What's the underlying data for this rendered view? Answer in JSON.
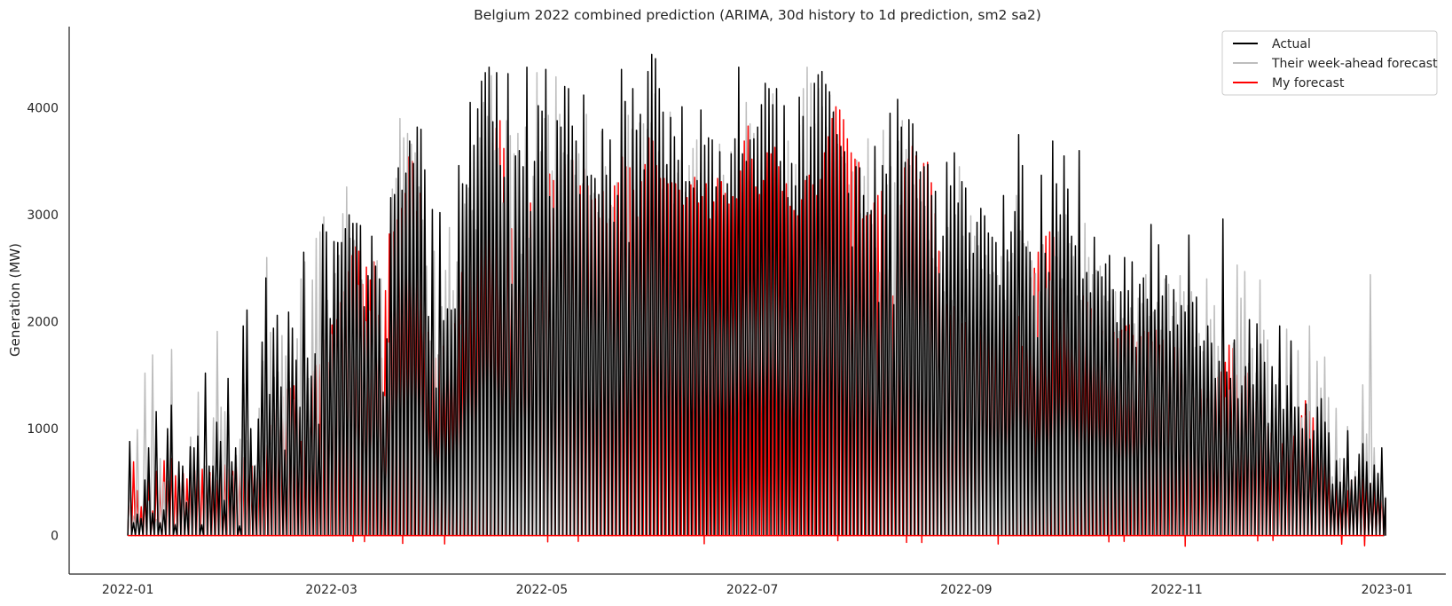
{
  "chart_data": {
    "type": "line",
    "title": "Belgium 2022 combined prediction (ARIMA, 30d history to 1d prediction, sm2 sa2)",
    "xlabel": "",
    "ylabel": "Generation (MW)",
    "xlim": [
      "2021-12-15",
      "2023-01-18"
    ],
    "ylim": [
      -360,
      4760
    ],
    "x_ticks": [
      "2022-01",
      "2022-03",
      "2022-05",
      "2022-07",
      "2022-09",
      "2022-11",
      "2023-01"
    ],
    "y_ticks": [
      0,
      1000,
      2000,
      3000,
      4000
    ],
    "grid": false,
    "legend_position": "top-right",
    "legend": [
      "Actual",
      "Their week-ahead forecast",
      "My forecast"
    ],
    "x_start": "2022-01-01",
    "x_end": "2022-12-31",
    "sampling": "daily peak (MW)",
    "series": [
      {
        "name": "Actual",
        "color": "#000000",
        "values": [
          880,
          120,
          200,
          160,
          520,
          820,
          210,
          1160,
          120,
          240,
          1000,
          1220,
          100,
          690,
          650,
          310,
          830,
          820,
          930,
          100,
          1520,
          650,
          650,
          1060,
          880,
          330,
          1470,
          690,
          820,
          90,
          1960,
          2110,
          1000,
          650,
          1090,
          1810,
          2410,
          1320,
          1940,
          2060,
          1390,
          800,
          2090,
          1940,
          1640,
          1200,
          2650,
          1660,
          1490,
          1700,
          1040,
          2910,
          2840,
          2030,
          2750,
          2740,
          2740,
          2870,
          3000,
          2920,
          2920,
          2900,
          2140,
          2430,
          2800,
          2520,
          2400,
          1340,
          1840,
          3160,
          3190,
          3440,
          3230,
          3390,
          3690,
          3480,
          3820,
          3800,
          3420,
          2050,
          3050,
          1380,
          3020,
          2010,
          2120,
          2110,
          2120,
          3460,
          3290,
          3280,
          4050,
          3650,
          3990,
          4250,
          4330,
          4380,
          3870,
          4330,
          3460,
          3350,
          4320,
          2350,
          3550,
          3600,
          3450,
          4380,
          3030,
          3500,
          4020,
          3970,
          4360,
          3170,
          3060,
          3880,
          3820,
          4200,
          4180,
          3830,
          3690,
          3190,
          4120,
          3360,
          3370,
          3340,
          3190,
          3800,
          3370,
          3700,
          2930,
          3180,
          4360,
          4060,
          2740,
          4180,
          3790,
          3940,
          3420,
          4340,
          4500,
          4460,
          4180,
          3960,
          3470,
          3910,
          3730,
          3510,
          4010,
          3310,
          3310,
          3250,
          3320,
          3980,
          3650,
          3720,
          3700,
          3260,
          3590,
          3180,
          3290,
          3570,
          3710,
          4380,
          3570,
          3500,
          3700,
          3710,
          3820,
          4030,
          4230,
          4180,
          4030,
          4180,
          3500,
          4020,
          3160,
          3480,
          3270,
          4100,
          3920,
          3360,
          3820,
          4230,
          4310,
          4340,
          4220,
          4150,
          3960,
          3750,
          3640,
          3590,
          3200,
          2700,
          3450,
          3440,
          3180,
          3020,
          3040,
          3640,
          2180,
          3460,
          3380,
          3950,
          2160,
          4080,
          3820,
          3490,
          3890,
          3850,
          3590,
          3400,
          3450,
          3470,
          3180,
          3220,
          2450,
          2800,
          3490,
          3270,
          3580,
          3110,
          3310,
          3250,
          2830,
          2640,
          2930,
          3060,
          2990,
          2830,
          2790,
          2740,
          2340,
          3180,
          2670,
          2840,
          3030,
          3750,
          3460,
          2700,
          2650,
          2240,
          1850,
          3370,
          2640,
          2460,
          3690,
          3290,
          3000,
          3550,
          3240,
          2800,
          2710,
          3600,
          2400,
          2460,
          2270,
          2790,
          2470,
          2420,
          2540,
          2620,
          2300,
          1990,
          2280,
          2600,
          2290,
          2560,
          1760,
          2350,
          2410,
          2210,
          2910,
          2110,
          2720,
          2240,
          2430,
          1910,
          2300,
          1970,
          2150,
          2090,
          2810,
          2180,
          2230,
          1770,
          1820,
          1960,
          1800,
          1470,
          1630,
          2960,
          1530,
          1470,
          1830,
          1280,
          1400,
          1580,
          2020,
          1410,
          1980,
          1790,
          1620,
          1050,
          1580,
          1410,
          1960,
          1180,
          1400,
          1820,
          1200,
          1200,
          1000,
          1230,
          900,
          980,
          1200,
          1280,
          1060,
          960,
          480,
          700,
          500,
          720,
          980,
          520,
          550,
          760,
          860,
          690,
          490,
          660,
          580,
          820,
          350
        ]
      },
      {
        "name": "Their week-ahead forecast",
        "color": "#bdbdbd",
        "values": [
          560,
          180,
          990,
          160,
          1520,
          320,
          1690,
          150,
          720,
          500,
          930,
          1740,
          110,
          450,
          550,
          320,
          920,
          540,
          1340,
          100,
          650,
          560,
          1100,
          1910,
          1200,
          1160,
          1130,
          560,
          750,
          900,
          1420,
          890,
          620,
          660,
          1190,
          1630,
          2600,
          1900,
          1480,
          1530,
          1870,
          1680,
          1440,
          1270,
          1840,
          2400,
          2560,
          1470,
          2390,
          2780,
          2840,
          2980,
          2200,
          1880,
          2450,
          2620,
          3010,
          3260,
          2780,
          2760,
          2340,
          2390,
          2000,
          2100,
          2560,
          2570,
          2400,
          1300,
          1800,
          3240,
          3340,
          3900,
          3720,
          3760,
          3660,
          3580,
          3260,
          2950,
          2520,
          1820,
          2660,
          1690,
          2140,
          2480,
          2880,
          2290,
          2560,
          1970,
          3100,
          3250,
          3040,
          2860,
          3720,
          4050,
          3920,
          4300,
          3600,
          3620,
          3110,
          3880,
          3740,
          3570,
          3760,
          2630,
          3820,
          2780,
          3360,
          4330,
          3590,
          3900,
          3930,
          3410,
          4290,
          3940,
          3580,
          3560,
          3510,
          3370,
          3570,
          3290,
          3940,
          3180,
          3200,
          3020,
          3780,
          3450,
          2960,
          3070,
          3300,
          2840,
          4060,
          3930,
          3800,
          3790,
          3860,
          3850,
          3800,
          3860,
          4130,
          3590,
          3240,
          3460,
          3960,
          3100,
          3390,
          3510,
          3210,
          3460,
          3620,
          3700,
          3390,
          3250,
          3250,
          3380,
          3040,
          3660,
          3370,
          3290,
          3590,
          3170,
          3680,
          3210,
          4050,
          3850,
          3760,
          3720,
          3990,
          3940,
          3830,
          4130,
          3830,
          3410,
          3420,
          3690,
          3120,
          3470,
          3840,
          4180,
          4380,
          4230,
          3850,
          4180,
          4010,
          3820,
          4120,
          3970,
          3660,
          3540,
          3480,
          3280,
          3400,
          3510,
          3010,
          3360,
          3710,
          2910,
          2690,
          2460,
          3790,
          3280,
          3450,
          3300,
          3690,
          3880,
          3610,
          3460,
          3280,
          3150,
          3120,
          3080,
          2760,
          2590,
          2510,
          2650,
          2280,
          2880,
          2200,
          3000,
          3450,
          2800,
          2490,
          2990,
          2800,
          2710,
          2490,
          2620,
          2440,
          2460,
          2430,
          2610,
          2200,
          2560,
          2640,
          3180,
          2850,
          2730,
          2750,
          2570,
          2450,
          2280,
          2720,
          2310,
          2380,
          2610,
          2840,
          2400,
          3000,
          2730,
          2610,
          2240,
          2200,
          2920,
          2600,
          2440,
          2480,
          2520,
          2240,
          2190,
          2300,
          2280,
          1910,
          2030,
          1910,
          2130,
          1980,
          2220,
          2170,
          2440,
          2050,
          2090,
          2180,
          1920,
          2400,
          2350,
          2050,
          2180,
          2430,
          2280,
          2150,
          2280,
          1760,
          1890,
          1720,
          2400,
          2020,
          2150,
          1770,
          1290,
          1290,
          1360,
          1800,
          2530,
          2220,
          2470,
          1610,
          1750,
          1520,
          2390,
          1920,
          1830,
          1170,
          1190,
          1470,
          800,
          1930,
          1500,
          770,
          1730,
          1100,
          1120,
          1960,
          730,
          1630,
          1380,
          1670,
          1290,
          550,
          1190,
          720,
          480,
          1020,
          520,
          600,
          700,
          1410,
          950,
          2440,
          820,
          590,
          520,
          360
        ]
      },
      {
        "name": "My forecast",
        "color": "#ff0000",
        "values": [
          560,
          690,
          420,
          270,
          370,
          520,
          230,
          600,
          470,
          700,
          510,
          720,
          560,
          520,
          580,
          530,
          640,
          610,
          600,
          620,
          570,
          590,
          540,
          520,
          650,
          660,
          620,
          600,
          640,
          640,
          730,
          600,
          650,
          540,
          730,
          600,
          850,
          1030,
          1180,
          1100,
          1300,
          1370,
          1380,
          1400,
          1270,
          880,
          1180,
          1010,
          1540,
          1590,
          1600,
          1830,
          1620,
          1970,
          2020,
          2180,
          2280,
          2470,
          2620,
          2700,
          2660,
          2350,
          2510,
          2390,
          2560,
          2060,
          1660,
          2290,
          2820,
          2840,
          2950,
          3060,
          3200,
          3540,
          3500,
          3030,
          3200,
          2210,
          1900,
          1780,
          1660,
          1690,
          1770,
          1720,
          1600,
          1980,
          2340,
          2460,
          2550,
          2640,
          2710,
          2810,
          3210,
          3360,
          3600,
          3670,
          3810,
          3880,
          3620,
          3270,
          2870,
          3380,
          3200,
          2230,
          3580,
          3110,
          3120,
          3210,
          3060,
          3280,
          3380,
          3320,
          3390,
          3330,
          3470,
          3430,
          3510,
          3270,
          3270,
          3430,
          3270,
          3140,
          3150,
          2970,
          3220,
          2920,
          3090,
          3270,
          3300,
          3540,
          3450,
          3440,
          3230,
          2980,
          3310,
          3470,
          3720,
          3690,
          3460,
          3340,
          3340,
          3290,
          3300,
          3290,
          3230,
          3090,
          3160,
          3280,
          3350,
          3110,
          3170,
          3290,
          2960,
          3120,
          3340,
          3310,
          3200,
          3100,
          3170,
          3150,
          3410,
          3690,
          3830,
          3520,
          3260,
          3190,
          3320,
          3580,
          3570,
          3630,
          3450,
          3220,
          3290,
          3080,
          3040,
          2990,
          3140,
          3320,
          3370,
          3280,
          3180,
          3330,
          3580,
          3730,
          3900,
          4010,
          3980,
          3890,
          3710,
          3580,
          3520,
          3490,
          2960,
          2990,
          3000,
          3110,
          3180,
          3220,
          3000,
          2490,
          2240,
          2640,
          3090,
          3440,
          3520,
          3640,
          3550,
          3330,
          3480,
          3490,
          3300,
          3010,
          2660,
          2390,
          2160,
          2060,
          2140,
          2000,
          1980,
          1990,
          1970,
          1940,
          1960,
          1920,
          2080,
          2300,
          2030,
          2040,
          1980,
          2250,
          2200,
          2010,
          2120,
          2050,
          1770,
          2220,
          2410,
          2500,
          2650,
          2720,
          2800,
          2840,
          2790,
          2600,
          2310,
          2220,
          2050,
          2060,
          1820,
          2120,
          2240,
          2180,
          2120,
          2020,
          1960,
          1910,
          1810,
          1800,
          1900,
          1840,
          1920,
          1960,
          1970,
          1870,
          1810,
          1860,
          1910,
          1900,
          1810,
          1920,
          1780,
          1830,
          1490,
          1480,
          1760,
          1750,
          1510,
          1350,
          1410,
          1290,
          1310,
          1370,
          1280,
          1350,
          1420,
          1480,
          1530,
          1620,
          1780,
          1750,
          1500,
          1330,
          1490,
          1520,
          1380,
          1250,
          1170,
          1450,
          1020,
          960,
          820,
          680,
          860,
          880,
          840,
          930,
          1040,
          1120,
          1260,
          1160,
          1100,
          1080,
          970,
          790,
          600,
          470,
          500,
          430,
          380,
          420,
          510,
          550,
          540,
          530,
          550,
          480,
          460,
          420,
          400,
          340
        ]
      }
    ]
  }
}
